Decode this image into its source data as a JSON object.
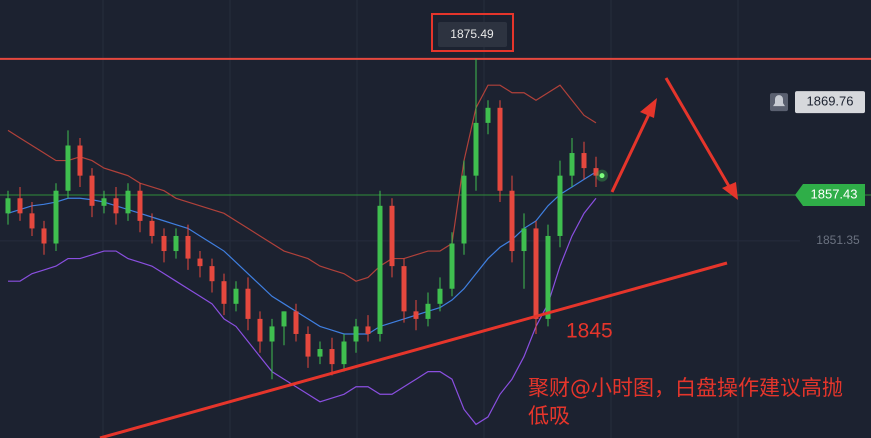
{
  "chart_data": {
    "type": "candlestick",
    "categories": [
      null,
      null,
      null,
      null,
      null,
      null,
      null,
      null,
      null,
      null,
      null,
      null,
      null,
      null,
      null,
      null,
      null,
      null,
      null,
      null,
      null,
      null,
      null,
      null,
      null,
      null,
      null,
      null,
      null,
      null,
      null,
      null,
      null,
      null,
      null,
      null,
      null,
      null,
      null,
      null,
      null,
      null,
      null,
      null,
      null,
      null,
      null,
      null,
      null,
      null
    ],
    "open": [
      1855,
      1857,
      1855,
      1853,
      1851,
      1858,
      1864,
      1860,
      1856,
      1857,
      1855,
      1858,
      1854,
      1852,
      1850,
      1852,
      1849,
      1848,
      1846,
      1843,
      1845,
      1841,
      1838,
      1840,
      1842,
      1839,
      1836,
      1837,
      1835,
      1838,
      1840,
      1839,
      1856,
      1848,
      1842,
      1841,
      1843,
      1845,
      1851,
      1860,
      1867,
      1869,
      1858,
      1850,
      1853,
      1841,
      1852,
      1860,
      1863,
      1861
    ],
    "high": [
      1858,
      1858.5,
      1856.5,
      1854,
      1859,
      1866,
      1865,
      1861,
      1858,
      1858.5,
      1859,
      1859,
      1855,
      1853,
      1853,
      1853.5,
      1850,
      1849,
      1847,
      1846,
      1846.5,
      1842,
      1841,
      1842,
      1843,
      1840,
      1838,
      1838.5,
      1839,
      1841,
      1841.5,
      1858,
      1857,
      1849,
      1843.5,
      1844.5,
      1846.5,
      1852.5,
      1862,
      1875.49,
      1870,
      1870,
      1860,
      1855,
      1854,
      1853.5,
      1862,
      1865,
      1864.5,
      1862.5
    ],
    "low": [
      1853.5,
      1854,
      1852,
      1849.5,
      1850,
      1857,
      1858.5,
      1854.5,
      1855,
      1853.5,
      1854,
      1852.5,
      1851,
      1848.5,
      1849,
      1847.5,
      1846.5,
      1844.5,
      1841.5,
      1842,
      1839.5,
      1836.5,
      1833,
      1837.5,
      1838,
      1834.5,
      1835,
      1833.5,
      1834,
      1836.5,
      1838,
      1838,
      1846.5,
      1840.5,
      1839.5,
      1840,
      1842,
      1844,
      1849.5,
      1858,
      1865.5,
      1856.5,
      1848.5,
      1845,
      1839,
      1840,
      1850.5,
      1858.5,
      1859.5,
      1858.5
    ],
    "close": [
      1857,
      1855,
      1853,
      1851,
      1858,
      1864,
      1860,
      1856,
      1857,
      1855,
      1858,
      1854,
      1852,
      1850,
      1852,
      1849,
      1848,
      1846,
      1843,
      1845,
      1841,
      1838,
      1840,
      1842,
      1839,
      1836,
      1837,
      1835,
      1838,
      1840,
      1839,
      1856,
      1848,
      1842,
      1841,
      1843,
      1845,
      1851,
      1860,
      1867,
      1869,
      1858,
      1850,
      1853,
      1841,
      1852,
      1860,
      1863,
      1861,
      1860
    ],
    "up_color": "#3fbf4f",
    "down_color": "#e5483e",
    "bands": [
      {
        "color": "#b0413a",
        "values": [
          1866,
          1865,
          1864,
          1863,
          1862,
          1862,
          1862.5,
          1862,
          1861,
          1860.5,
          1860,
          1859,
          1858.5,
          1858,
          1857,
          1856.5,
          1856,
          1855.5,
          1855,
          1854,
          1853,
          1852,
          1851,
          1850,
          1849.5,
          1849,
          1848,
          1847.5,
          1847,
          1846,
          1846.5,
          1848,
          1849,
          1849,
          1849.5,
          1850,
          1850,
          1851,
          1862,
          1869,
          1872,
          1872,
          1871,
          1871,
          1870,
          1871,
          1872,
          1870,
          1868,
          1867
        ]
      },
      {
        "color": "#3f7fe0",
        "values": [
          1855,
          1855.5,
          1856,
          1856.2,
          1856.5,
          1857,
          1857,
          1856.8,
          1856.5,
          1856,
          1855.5,
          1855,
          1854.5,
          1854,
          1853.5,
          1853,
          1852,
          1851,
          1850,
          1848.5,
          1847,
          1845.5,
          1844,
          1843,
          1842,
          1841,
          1840,
          1839.5,
          1839,
          1839,
          1839,
          1840,
          1840.5,
          1841,
          1841.5,
          1842,
          1842.5,
          1843.5,
          1845,
          1847,
          1849,
          1850.5,
          1851.5,
          1853,
          1854,
          1856,
          1857.5,
          1858.5,
          1859.5,
          1860.5
        ]
      },
      {
        "color": "#8a4fe0",
        "values": [
          1846,
          1846,
          1847,
          1847.5,
          1848,
          1849,
          1849,
          1849.5,
          1850,
          1850,
          1849,
          1848.5,
          1848,
          1847,
          1846,
          1845,
          1844,
          1843,
          1841,
          1840,
          1838,
          1836,
          1834,
          1833,
          1832,
          1831,
          1830,
          1830.5,
          1831,
          1832,
          1832,
          1831,
          1831,
          1832,
          1833,
          1834,
          1834,
          1833,
          1829,
          1827,
          1828,
          1831,
          1833,
          1836,
          1840,
          1843,
          1848,
          1852,
          1855,
          1857
        ]
      }
    ],
    "ylim": [
      1825.2,
      1883.3
    ],
    "high_label": 1875.49,
    "alert_price": 1869.76,
    "last_price": 1857.43,
    "grid_price": 1851.35,
    "annotations": [
      "1845",
      "聚财@小时图，白盘操作建议高抛低吸"
    ]
  }
}
